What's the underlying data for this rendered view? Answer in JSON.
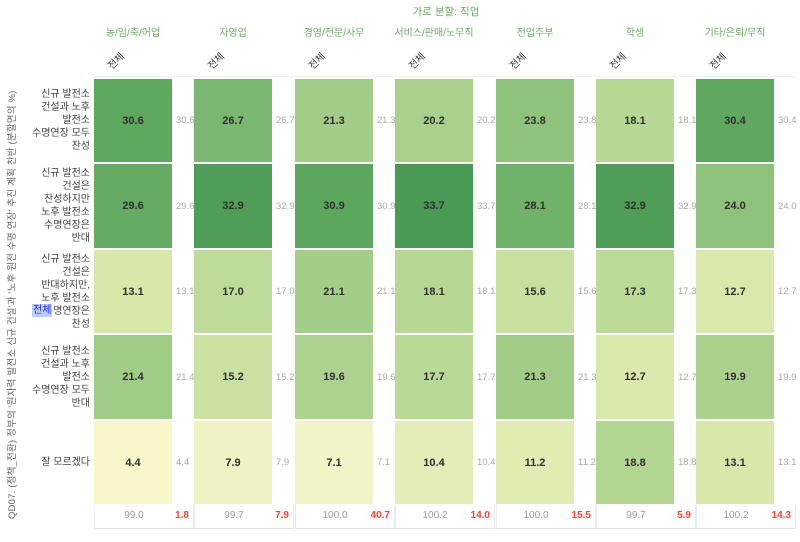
{
  "selection_overlay": {
    "label": "전체"
  },
  "chart_data": {
    "type": "heatmap",
    "title": "가로 분할: 직업",
    "ylabel": "QD07. (정책_전환) 정부의 '원자력 발전소 신규 건설'과 '노후 원전 수명 연장' 추진 계획 찬반 (분할면의 %)",
    "column_tick": "전체",
    "legend_position": "none",
    "grid": false,
    "rows": [
      "신규 발전소\n건설과 노후\n발전소\n수명연장 모두\n찬성",
      "신규 발전소\n건설은\n찬성하지만\n노후 발전소\n수명연장은\n반대",
      "신규 발전소\n건설은\n반대하지만,\n노후 발전소\n수명연장은\n찬성",
      "신규 발전소\n건설과 노후\n발전소\n수명연장 모두\n반대",
      "잘 모르겠다"
    ],
    "series": [
      {
        "name": "농/임/축/어업",
        "values": [
          "30.6",
          "29.6",
          "13.1",
          "21.4",
          "4.4"
        ],
        "total": "99.0",
        "net": "1.8"
      },
      {
        "name": "자영업",
        "values": [
          "26.7",
          "32.9",
          "17.0",
          "15.2",
          "7.9"
        ],
        "total": "99.7",
        "net": "7.9"
      },
      {
        "name": "경영/전문/사무",
        "values": [
          "21.3",
          "30.9",
          "21.1",
          "19.6",
          "7.1"
        ],
        "total": "100.0",
        "net": "40.7"
      },
      {
        "name": "서비스/판매/노무직",
        "values": [
          "20.2",
          "33.7",
          "18.1",
          "17.7",
          "10.4"
        ],
        "total": "100.2",
        "net": "14.0"
      },
      {
        "name": "전업주부",
        "values": [
          "23.8",
          "28.1",
          "15.6",
          "21.3",
          "11.2"
        ],
        "total": "100.0",
        "net": "15.5"
      },
      {
        "name": "학생",
        "values": [
          "18.1",
          "32.9",
          "17.3",
          "12.7",
          "18.8"
        ],
        "total": "99.7",
        "net": "5.9"
      },
      {
        "name": "기타/은퇴/무직",
        "values": [
          "30.4",
          "24.0",
          "12.7",
          "19.9",
          "13.1"
        ],
        "total": "100.2",
        "net": "14.3"
      }
    ],
    "color_scale": {
      "anchors": [
        [
          4,
          "#f9f7cb"
        ],
        [
          8,
          "#f0f2c4"
        ],
        [
          13,
          "#d8e8aa"
        ],
        [
          17,
          "#bedb99"
        ],
        [
          21,
          "#a4cd89"
        ],
        [
          25,
          "#86be78"
        ],
        [
          29,
          "#69ae65"
        ],
        [
          34,
          "#489853"
        ]
      ]
    },
    "colors": {
      "header_green": "#6aad62",
      "value_text": "#303030",
      "side_text": "#a8a8a8",
      "total_text": "#9b9b9b",
      "net_text": "#e8463a"
    }
  }
}
